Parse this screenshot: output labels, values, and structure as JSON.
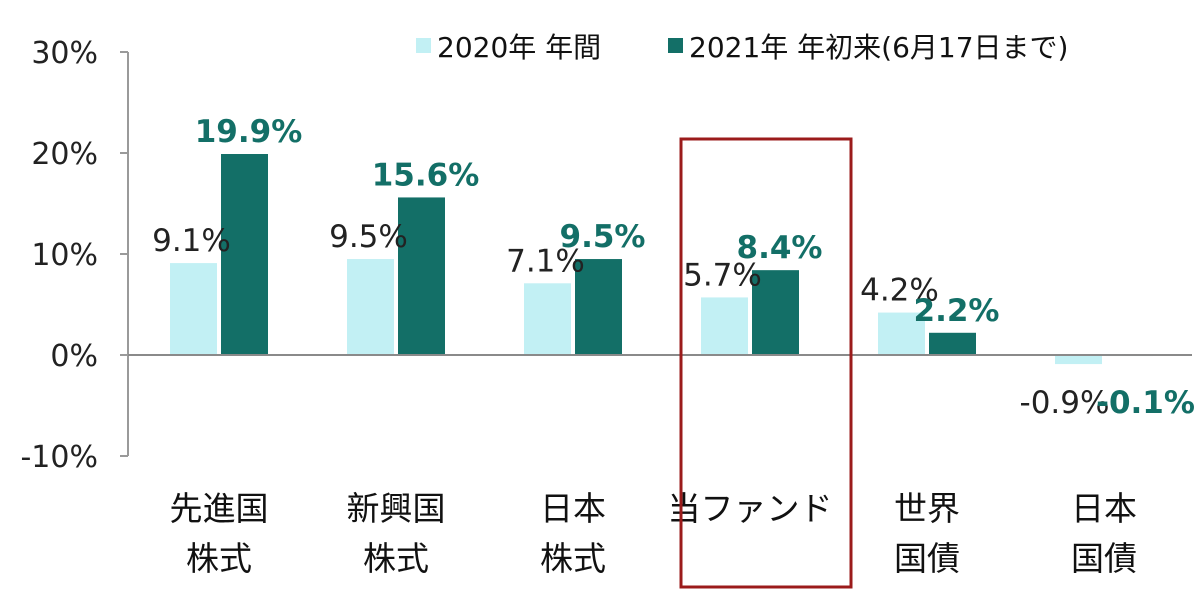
{
  "chart_data": {
    "type": "bar",
    "categories": [
      [
        "先進国",
        "株式"
      ],
      [
        "新興国",
        "株式"
      ],
      [
        "日本",
        "株式"
      ],
      [
        "当ファンド"
      ],
      [
        "世界",
        "国債"
      ],
      [
        "日本",
        "国債"
      ]
    ],
    "series": [
      {
        "name": "2020年 年間",
        "values": [
          9.1,
          9.5,
          7.1,
          5.7,
          4.2,
          -0.9
        ],
        "labels": [
          "9.1%",
          "9.5%",
          "7.1%",
          "5.7%",
          "4.2%",
          "-0.9%"
        ],
        "color": "#c2f0f4"
      },
      {
        "name": "2021年 年初来(6月17日まで)",
        "values": [
          19.9,
          15.6,
          9.5,
          8.4,
          2.2,
          -0.1
        ],
        "labels": [
          "19.9%",
          "15.6%",
          "9.5%",
          "8.4%",
          "2.2%",
          "-0.1%"
        ],
        "color": "#136f67"
      }
    ],
    "yticks": [
      30,
      20,
      10,
      0,
      -10
    ],
    "ytick_labels": [
      "30%",
      "20%",
      "10%",
      "0%",
      "-10%"
    ],
    "ylim": [
      -10,
      30
    ],
    "highlight_category": "当ファンド",
    "highlight_color": "#9b1b1b",
    "legend_position": "top-right",
    "grid": false
  }
}
